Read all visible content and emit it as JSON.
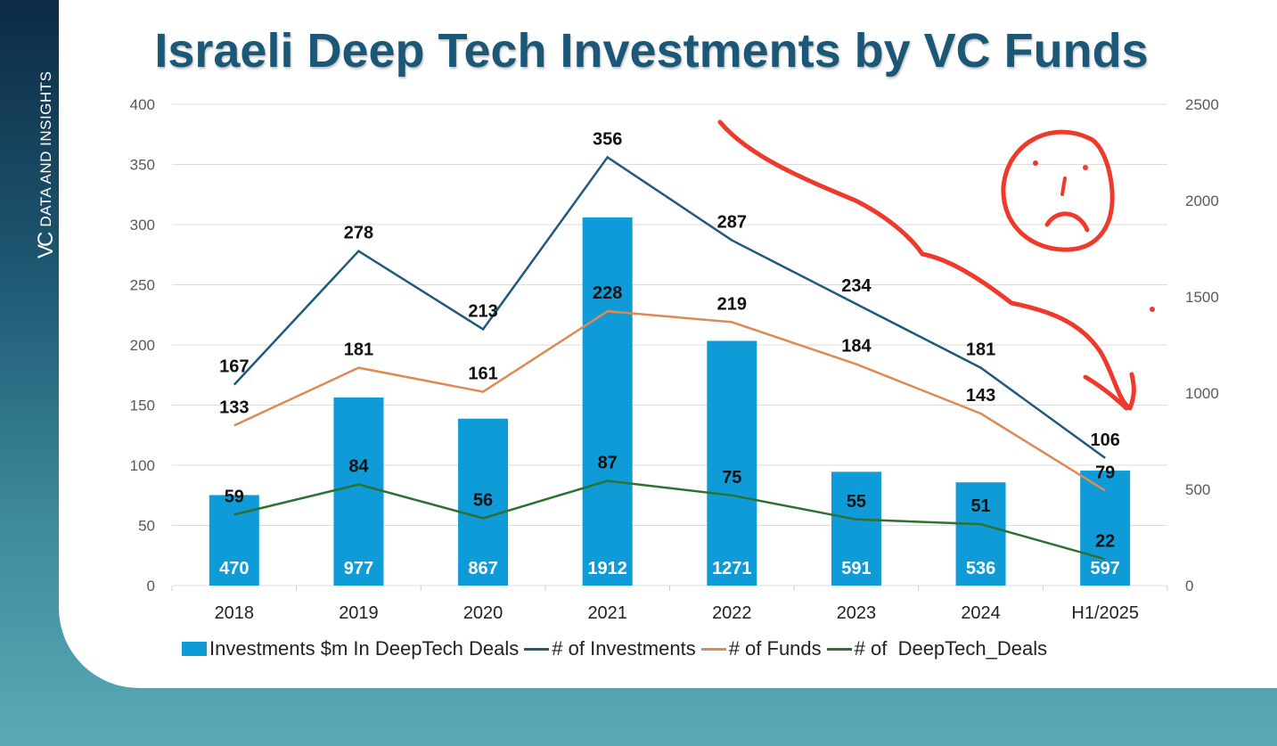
{
  "brand": {
    "logo": "VC",
    "tagline": "DATA AND INSIGHTS"
  },
  "chart_data": {
    "type": "bar",
    "title": "Israeli Deep Tech Investments by VC Funds",
    "categories": [
      "2018",
      "2019",
      "2020",
      "2021",
      "2022",
      "2023",
      "2024",
      "H1/2025"
    ],
    "y_left": {
      "range": [
        0,
        400
      ],
      "ticks": [
        "0",
        "50",
        "100",
        "150",
        "200",
        "250",
        "300",
        "350",
        "400"
      ]
    },
    "y_right": {
      "range": [
        0,
        2500
      ],
      "ticks": [
        "0",
        "500",
        "1000",
        "1500",
        "2000",
        "2500"
      ]
    },
    "grid": true,
    "legend_position": "bottom",
    "series": [
      {
        "name": "Investments $m In DeepTech Deals",
        "type": "bar",
        "axis": "right",
        "color": "#0f9bd7",
        "values": [
          470,
          977,
          867,
          1912,
          1271,
          591,
          536,
          597
        ]
      },
      {
        "name": "# of Investments",
        "type": "line",
        "axis": "left",
        "color": "#1f5a7d",
        "values": [
          167,
          278,
          213,
          356,
          287,
          234,
          181,
          106
        ]
      },
      {
        "name": "# of Funds",
        "type": "line",
        "axis": "left",
        "color": "#dd8a55",
        "values": [
          133,
          181,
          161,
          228,
          219,
          184,
          143,
          79
        ]
      },
      {
        "name": "# of  DeepTech_Deals",
        "type": "line",
        "axis": "left",
        "color": "#2e7032",
        "values": [
          59,
          84,
          56,
          87,
          75,
          55,
          51,
          22
        ]
      }
    ],
    "annotations": [
      "red hand-drawn downward arrow",
      "red hand-drawn sad face"
    ]
  }
}
